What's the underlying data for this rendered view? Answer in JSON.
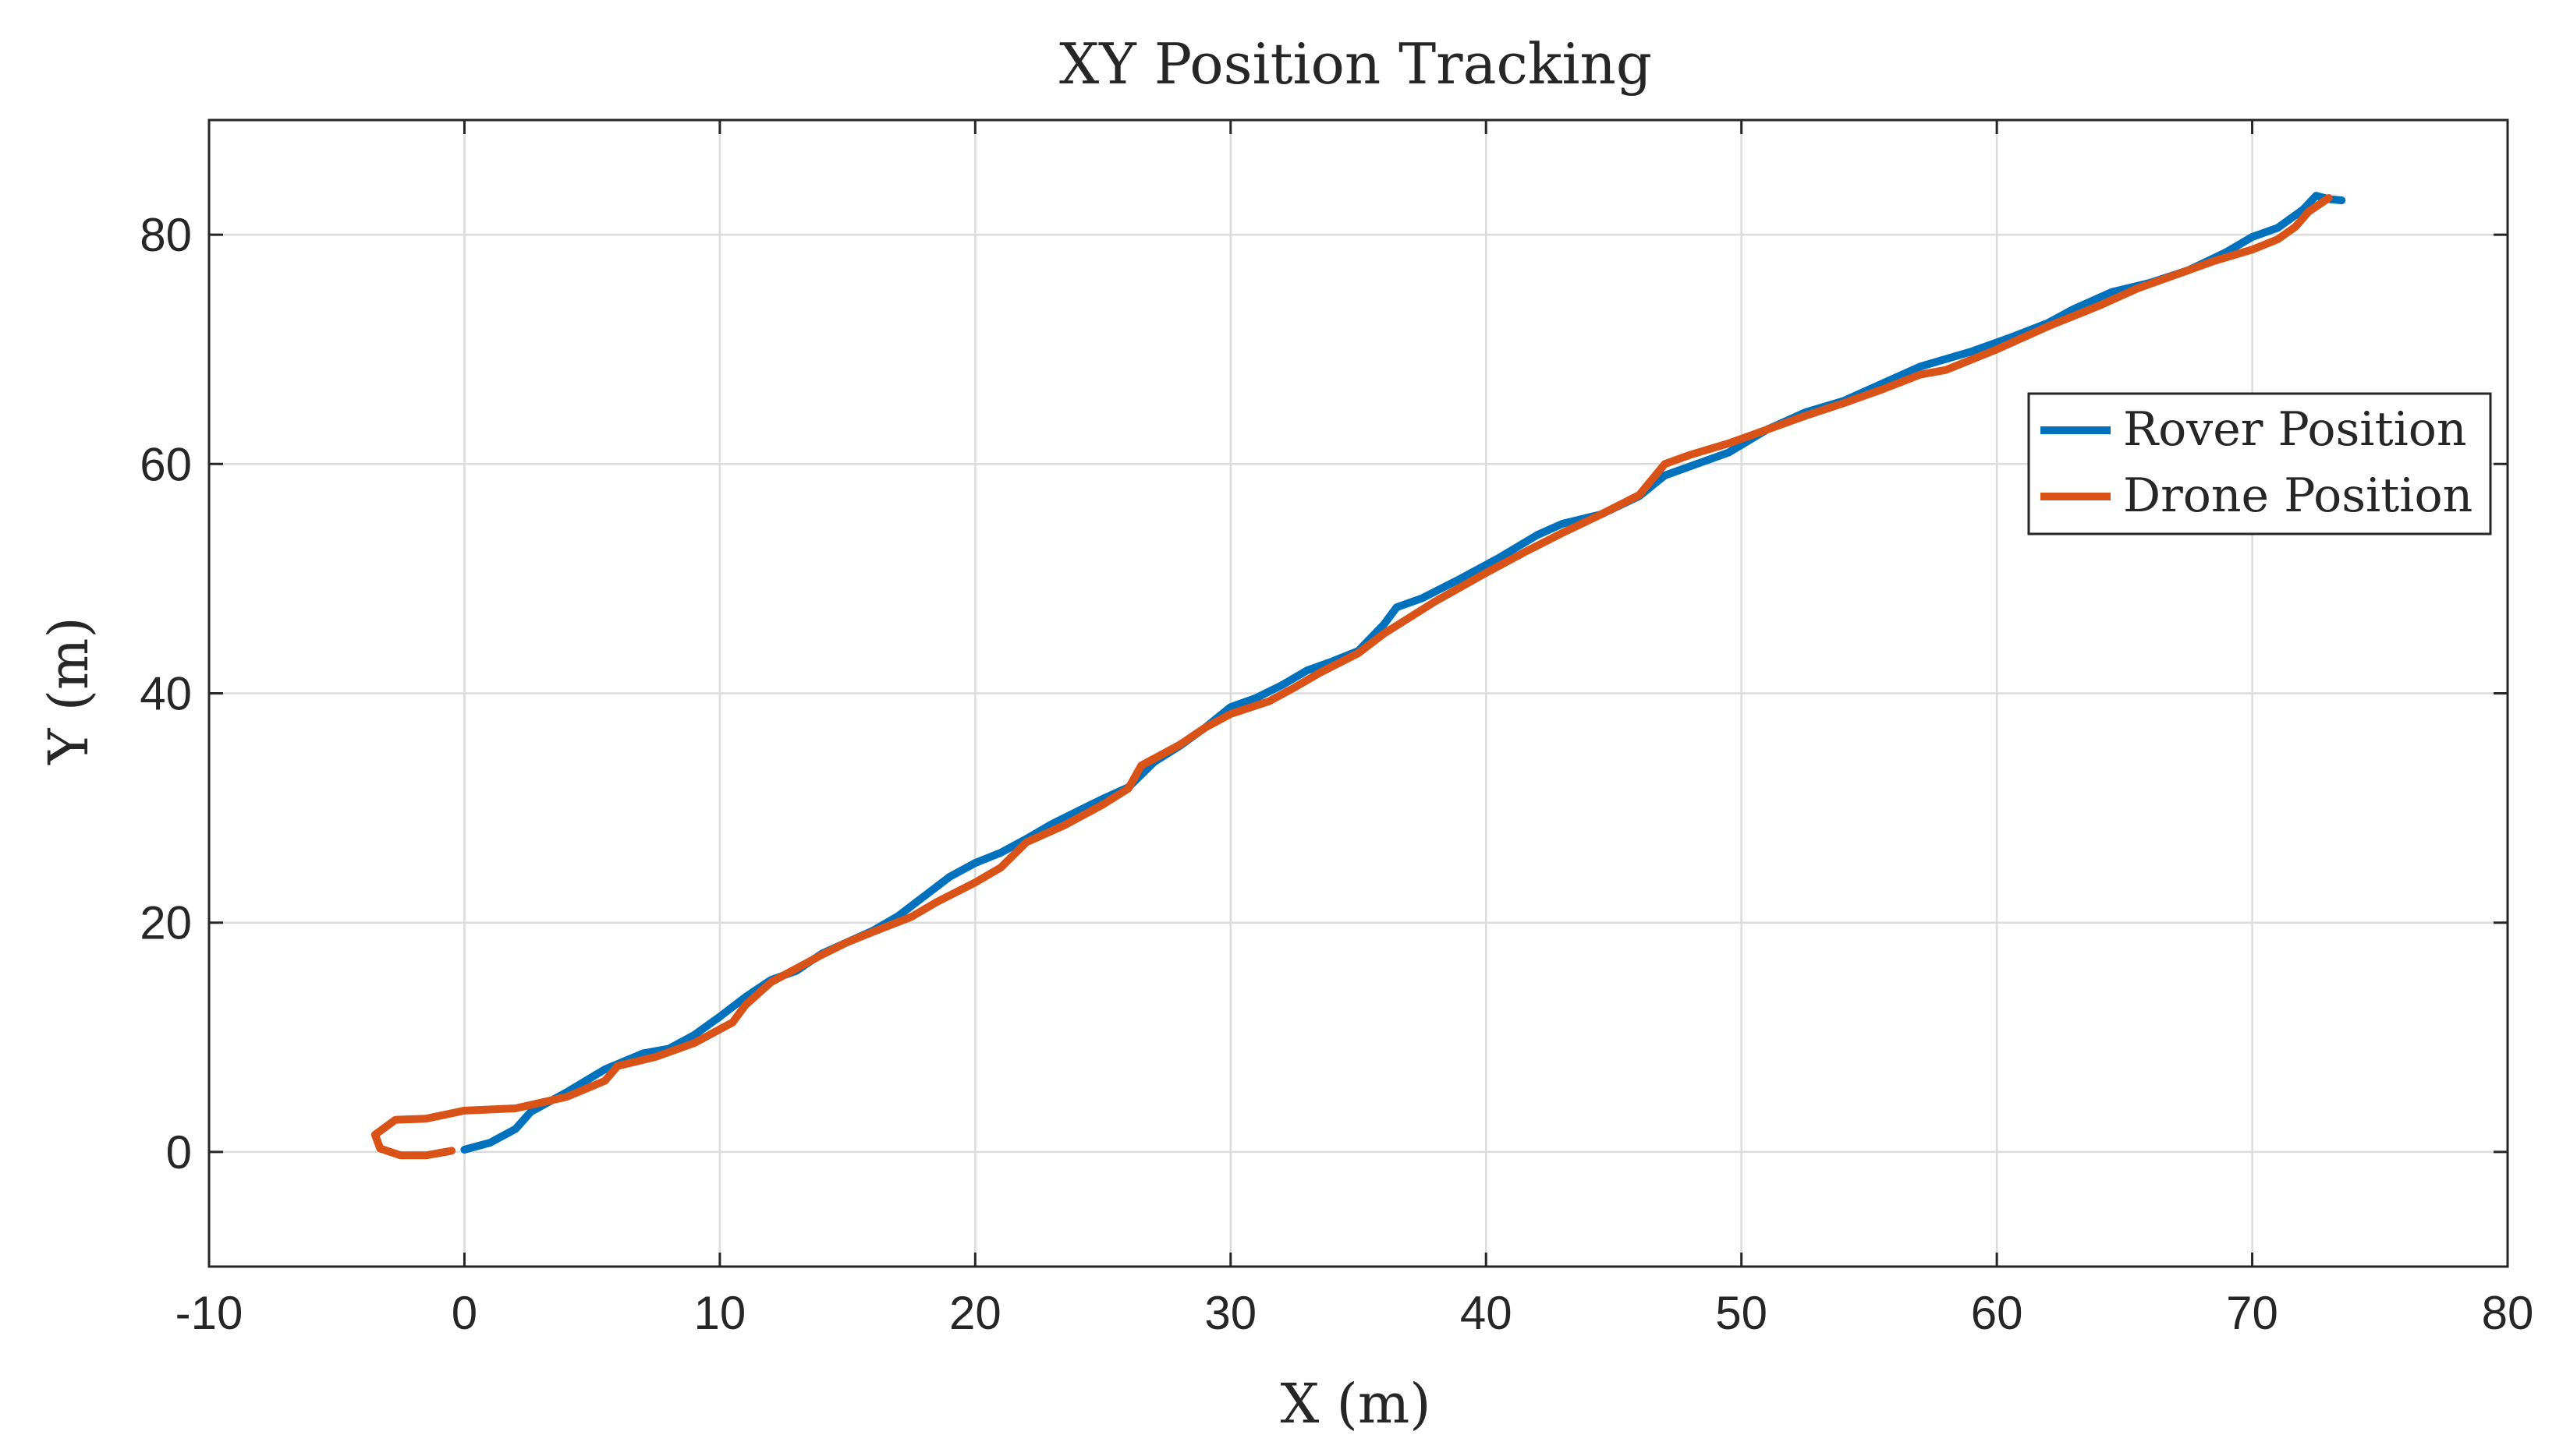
{
  "chart_data": {
    "type": "line",
    "title": "XY Position Tracking",
    "xlabel": "X (m)",
    "ylabel": "Y (m)",
    "xlim": [
      -10,
      80
    ],
    "ylim": [
      -10,
      90
    ],
    "xticks": [
      -10,
      0,
      10,
      20,
      30,
      40,
      50,
      60,
      70,
      80
    ],
    "yticks": [
      0,
      20,
      40,
      60,
      80
    ],
    "grid": true,
    "legend_position": "upper-right",
    "series": [
      {
        "name": "Rover Position",
        "color": "#0072BD",
        "points": [
          [
            0,
            0.2
          ],
          [
            1,
            0.8
          ],
          [
            2,
            2
          ],
          [
            2.6,
            3.5
          ],
          [
            4,
            5.2
          ],
          [
            5.5,
            7.2
          ],
          [
            7,
            8.6
          ],
          [
            8,
            9.0
          ],
          [
            9,
            10.2
          ],
          [
            10,
            11.8
          ],
          [
            11,
            13.5
          ],
          [
            12,
            15
          ],
          [
            13,
            15.8
          ],
          [
            14,
            17.3
          ],
          [
            15,
            18.3
          ],
          [
            16,
            19.3
          ],
          [
            17,
            20.6
          ],
          [
            18,
            22.3
          ],
          [
            19,
            24
          ],
          [
            20,
            25.2
          ],
          [
            21,
            26.1
          ],
          [
            22,
            27.3
          ],
          [
            23,
            28.6
          ],
          [
            24,
            29.7
          ],
          [
            25,
            30.8
          ],
          [
            26,
            31.8
          ],
          [
            27,
            34
          ],
          [
            28,
            35.4
          ],
          [
            29,
            37
          ],
          [
            30,
            38.8
          ],
          [
            31,
            39.6
          ],
          [
            32,
            40.7
          ],
          [
            33,
            42
          ],
          [
            34,
            42.8
          ],
          [
            35,
            43.7
          ],
          [
            36,
            46
          ],
          [
            36.5,
            47.5
          ],
          [
            37.5,
            48.3
          ],
          [
            39,
            50
          ],
          [
            40.5,
            51.8
          ],
          [
            42,
            53.8
          ],
          [
            43,
            54.8
          ],
          [
            44.5,
            55.6
          ],
          [
            46,
            57.2
          ],
          [
            47,
            59
          ],
          [
            48,
            59.8
          ],
          [
            49.5,
            61
          ],
          [
            51,
            63
          ],
          [
            52.5,
            64.5
          ],
          [
            54,
            65.5
          ],
          [
            55.5,
            67
          ],
          [
            57,
            68.5
          ],
          [
            59,
            69.8
          ],
          [
            60.5,
            71
          ],
          [
            62,
            72.3
          ],
          [
            63,
            73.5
          ],
          [
            64.5,
            75
          ],
          [
            66,
            75.8
          ],
          [
            67.5,
            76.9
          ],
          [
            69,
            78.5
          ],
          [
            70,
            79.8
          ],
          [
            71,
            80.6
          ],
          [
            72,
            82.2
          ],
          [
            72.5,
            83.4
          ],
          [
            73,
            83.1
          ],
          [
            73.5,
            83
          ]
        ]
      },
      {
        "name": "Drone Position",
        "color": "#D95319",
        "points": [
          [
            -0.5,
            0.1
          ],
          [
            -1.5,
            -0.3
          ],
          [
            -2.5,
            -0.3
          ],
          [
            -3.3,
            0.3
          ],
          [
            -3.5,
            1.5
          ],
          [
            -2.7,
            2.8
          ],
          [
            -1.5,
            2.9
          ],
          [
            0,
            3.6
          ],
          [
            2,
            3.8
          ],
          [
            4,
            4.8
          ],
          [
            5.5,
            6.2
          ],
          [
            6,
            7.5
          ],
          [
            7.5,
            8.3
          ],
          [
            9,
            9.5
          ],
          [
            10.5,
            11.3
          ],
          [
            11,
            12.8
          ],
          [
            12,
            14.8
          ],
          [
            13,
            16
          ],
          [
            14,
            17.2
          ],
          [
            15,
            18.3
          ],
          [
            16,
            19.2
          ],
          [
            17.5,
            20.5
          ],
          [
            18.5,
            21.8
          ],
          [
            20,
            23.5
          ],
          [
            21,
            24.8
          ],
          [
            22,
            27
          ],
          [
            23.5,
            28.5
          ],
          [
            25,
            30.3
          ],
          [
            26,
            31.7
          ],
          [
            26.5,
            33.7
          ],
          [
            28,
            35.5
          ],
          [
            29,
            37
          ],
          [
            30,
            38.2
          ],
          [
            31.5,
            39.3
          ],
          [
            32.5,
            40.5
          ],
          [
            33.5,
            41.8
          ],
          [
            35,
            43.5
          ],
          [
            36,
            45.2
          ],
          [
            38,
            48
          ],
          [
            40,
            50.5
          ],
          [
            41.5,
            52.3
          ],
          [
            43,
            54
          ],
          [
            44.5,
            55.6
          ],
          [
            46,
            57.3
          ],
          [
            47,
            60
          ],
          [
            48,
            60.8
          ],
          [
            49.5,
            61.8
          ],
          [
            51,
            63
          ],
          [
            52.5,
            64.2
          ],
          [
            54,
            65.3
          ],
          [
            55.5,
            66.5
          ],
          [
            57,
            67.8
          ],
          [
            58,
            68.2
          ],
          [
            60,
            70
          ],
          [
            62,
            72
          ],
          [
            64,
            73.8
          ],
          [
            65.5,
            75.3
          ],
          [
            67,
            76.5
          ],
          [
            68.5,
            77.7
          ],
          [
            70,
            78.7
          ],
          [
            71,
            79.6
          ],
          [
            71.7,
            80.7
          ],
          [
            72.2,
            82
          ],
          [
            73,
            83.2
          ]
        ]
      }
    ]
  }
}
